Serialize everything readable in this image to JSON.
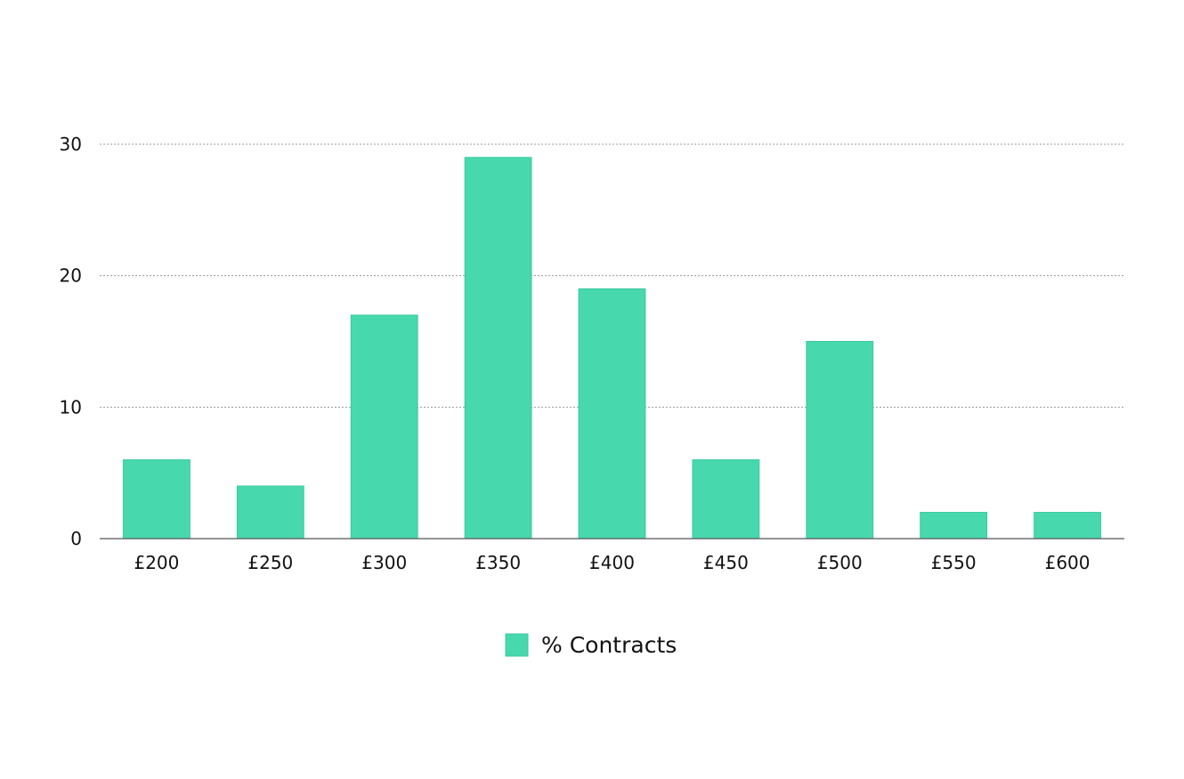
{
  "chart_data": {
    "type": "bar",
    "title": "",
    "xlabel": "",
    "ylabel": "",
    "categories": [
      "£200",
      "£250",
      "£300",
      "£350",
      "£400",
      "£450",
      "£500",
      "£550",
      "£600"
    ],
    "series": [
      {
        "name": "% Contracts",
        "values": [
          6,
          4,
          17,
          29,
          19,
          6,
          15,
          2,
          2
        ]
      }
    ],
    "ylim": [
      0,
      30
    ],
    "yticks": [
      0,
      10,
      20,
      30
    ],
    "grid": true,
    "legend_position": "bottom-center",
    "colors": {
      "bar": "#48d8ad",
      "bar_edge": "#3cc99f",
      "grid": "#9a9a9a",
      "axis": "#555555"
    }
  }
}
